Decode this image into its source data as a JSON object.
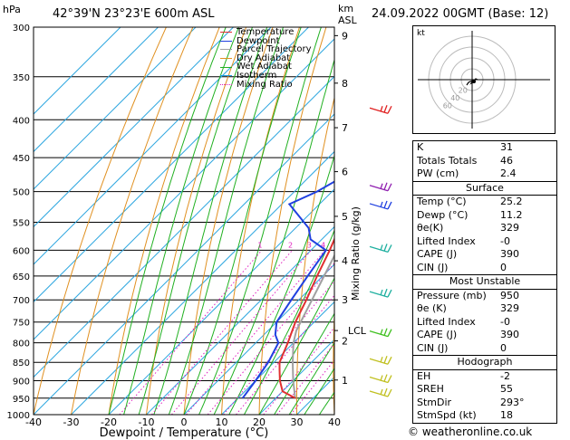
{
  "header": {
    "hpa_unit": "hPa",
    "location": "42°39'N  23°23'E  600m  ASL",
    "km_unit": "km",
    "asl_unit": "ASL",
    "datetime": "24.09.2022  00GMT  (Base: 12)"
  },
  "legend": [
    {
      "label": "Temperature",
      "color": "#e03030",
      "dashed": false
    },
    {
      "label": "Dewpoint",
      "color": "#2040e0",
      "dashed": false
    },
    {
      "label": "Parcel Trajectory",
      "color": "#a0a0a0",
      "dashed": false
    },
    {
      "label": "Dry Adiabat",
      "color": "#e09020",
      "dashed": false
    },
    {
      "label": "Wet Adiabat",
      "color": "#20b020",
      "dashed": false
    },
    {
      "label": "Isotherm",
      "color": "#20a0e0",
      "dashed": false
    },
    {
      "label": "Mixing Ratio",
      "color": "#e020c0",
      "dashed": true
    }
  ],
  "chart_data": {
    "type": "skew-t",
    "xlabel": "Dewpoint / Temperature (°C)",
    "ylabel_right": "Mixing Ratio (g/kg)",
    "pressure_ticks": [
      300,
      350,
      400,
      450,
      500,
      550,
      600,
      650,
      700,
      750,
      800,
      850,
      900,
      950,
      1000
    ],
    "temp_ticks": [
      -40,
      -30,
      -20,
      -10,
      0,
      10,
      20,
      30,
      40
    ],
    "xlim": [
      -40,
      40
    ],
    "ylim_hpa": [
      1000,
      300
    ],
    "km_ticks": [
      {
        "label": "9",
        "p": 308
      },
      {
        "label": "8",
        "p": 357
      },
      {
        "label": "7",
        "p": 410
      },
      {
        "label": "6",
        "p": 470
      },
      {
        "label": "5",
        "p": 540
      },
      {
        "label": "4",
        "p": 620
      },
      {
        "label": "3",
        "p": 700
      },
      {
        "label": "2",
        "p": 795
      },
      {
        "label": "1",
        "p": 898
      }
    ],
    "lcl": {
      "label": "LCL",
      "p": 770
    },
    "mixing_ratio_labels": [
      "1",
      "2",
      "3",
      "4",
      "6",
      "8",
      "10",
      "16",
      "20",
      "25"
    ],
    "mixing_ratio_values": [
      1,
      2,
      3,
      4,
      6,
      8,
      10,
      16,
      20,
      25
    ],
    "temperature": {
      "p": [
        950,
        930,
        900,
        870,
        850,
        800,
        750,
        700,
        650,
        600,
        570,
        550,
        500,
        450,
        400,
        350,
        320,
        300
      ],
      "t": [
        25.2,
        20,
        16.5,
        13.5,
        11.5,
        8.5,
        5,
        2,
        -1.5,
        -5,
        -7.5,
        -9,
        -14,
        -19.5,
        -26.5,
        -35,
        -40.5,
        -44
      ]
    },
    "dewpoint": {
      "p": [
        950,
        900,
        850,
        800,
        780,
        750,
        700,
        650,
        600,
        580,
        560,
        520,
        500,
        470,
        460,
        440,
        420,
        400,
        380,
        350,
        340,
        330,
        320,
        310,
        300
      ],
      "t": [
        11.2,
        10,
        8.5,
        6,
        3,
        0,
        -2,
        -4,
        -6,
        -13,
        -16.5,
        -28,
        -24,
        -20,
        -19,
        -15,
        -17,
        -21,
        -23,
        -25,
        -35,
        -35,
        -35,
        -35,
        -43
      ]
    },
    "parcel": {
      "p": [
        950,
        900,
        850,
        800,
        770,
        700,
        600,
        500,
        400,
        300
      ],
      "t": [
        25.2,
        20,
        15,
        10,
        7.5,
        3.5,
        -3,
        -11.5,
        -23,
        -40
      ]
    }
  },
  "barbs": [
    {
      "p": 390,
      "color": "#e02020"
    },
    {
      "p": 496,
      "color": "#9020b0"
    },
    {
      "p": 525,
      "color": "#2040e0"
    },
    {
      "p": 600,
      "color": "#20b0a0"
    },
    {
      "p": 690,
      "color": "#20b0a0"
    },
    {
      "p": 780,
      "color": "#40c020"
    },
    {
      "p": 850,
      "color": "#c0c020"
    },
    {
      "p": 900,
      "color": "#c0c020"
    },
    {
      "p": 940,
      "color": "#c0c020"
    }
  ],
  "hodograph": {
    "label": "kt",
    "ring_labels": [
      "20",
      "40",
      "60"
    ]
  },
  "indices": [
    {
      "label": "K",
      "value": "31"
    },
    {
      "label": "Totals Totals",
      "value": "46"
    },
    {
      "label": "PW (cm)",
      "value": "2.4"
    }
  ],
  "surface": {
    "title": "Surface",
    "rows": [
      {
        "label": "Temp (°C)",
        "value": "25.2"
      },
      {
        "label": "Dewp (°C)",
        "value": "11.2"
      },
      {
        "label": "θe(K)",
        "value": "329"
      },
      {
        "label": "Lifted Index",
        "value": "-0"
      },
      {
        "label": "CAPE (J)",
        "value": "390"
      },
      {
        "label": "CIN (J)",
        "value": "0"
      }
    ]
  },
  "most_unstable": {
    "title": "Most Unstable",
    "rows": [
      {
        "label": "Pressure (mb)",
        "value": "950"
      },
      {
        "label": "θe (K)",
        "value": "329"
      },
      {
        "label": "Lifted Index",
        "value": "-0"
      },
      {
        "label": "CAPE (J)",
        "value": "390"
      },
      {
        "label": "CIN (J)",
        "value": "0"
      }
    ]
  },
  "hodograph_table": {
    "title": "Hodograph",
    "rows": [
      {
        "label": "EH",
        "value": "-2"
      },
      {
        "label": "SREH",
        "value": "55"
      },
      {
        "label": "StmDir",
        "value": "293°"
      },
      {
        "label": "StmSpd (kt)",
        "value": "18"
      }
    ]
  },
  "footer": "© weatheronline.co.uk"
}
